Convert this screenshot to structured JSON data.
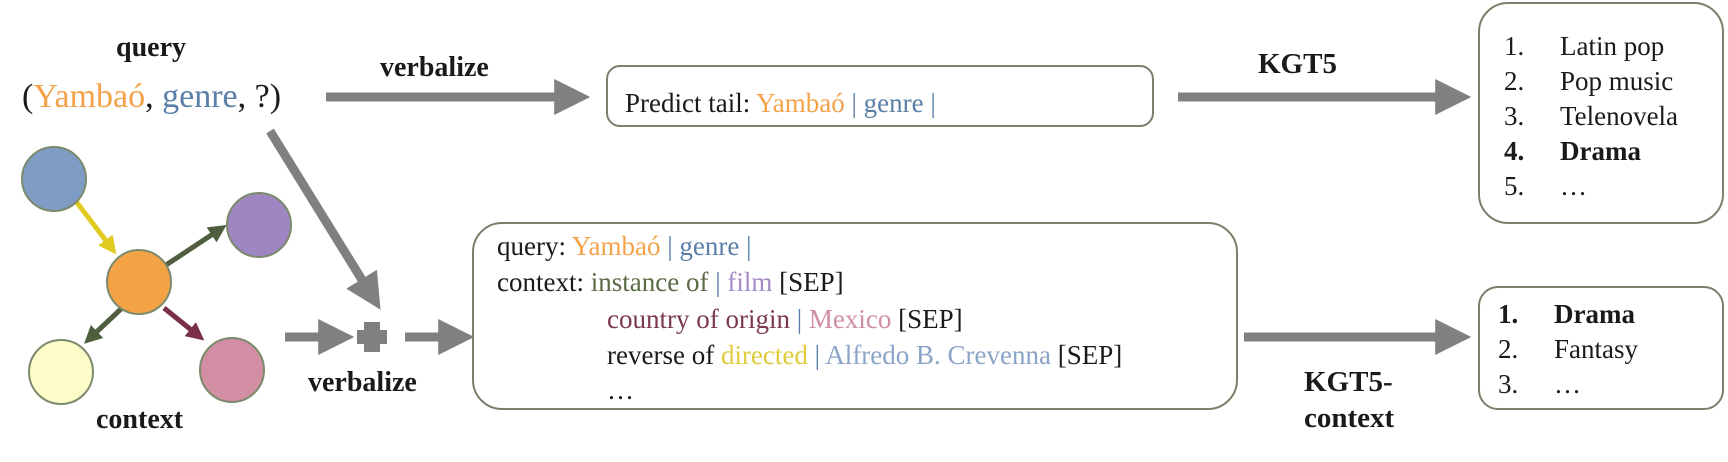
{
  "labels": {
    "query": "query",
    "context": "context",
    "verbalize_top": "verbalize",
    "verbalize_bottom": "verbalize",
    "kgt5": "KGT5",
    "kgt5_context_1": "KGT5-",
    "kgt5_context_2": "context"
  },
  "query_tuple": {
    "open": "(",
    "head": "Yambaó",
    "sep1": ", ",
    "relation": "genre",
    "sep2": ", ",
    "tail": "?",
    "close": ")"
  },
  "top_input": {
    "prefix": "Predict tail: ",
    "head": "Yambaó",
    "sep1": " | ",
    "relation": "genre",
    "sep2": " |"
  },
  "context_input": {
    "query_prefix": "query: ",
    "query_head": "Yambaó",
    "query_sep1": " | ",
    "query_relation": "genre",
    "query_sep2": " |",
    "context_prefix": "context: ",
    "lines": [
      {
        "relation": "instance of",
        "sep": " | ",
        "entity": "film",
        "end": " [SEP]"
      },
      {
        "relation": "country of origin",
        "sep": " | ",
        "entity": "Mexico",
        "end": " [SEP]"
      },
      {
        "relation_a": "reverse of ",
        "relation_b": "directed",
        "sep": " | ",
        "entity": "Alfredo B. Crevenna",
        "end": " [SEP]"
      }
    ],
    "ellipsis": "…"
  },
  "top_results": [
    {
      "num": "1.",
      "label": "Latin pop"
    },
    {
      "num": "2.",
      "label": "Pop music"
    },
    {
      "num": "3.",
      "label": "Telenovela"
    },
    {
      "num": "4.",
      "label": "Drama"
    },
    {
      "num": "5.",
      "label": "…"
    }
  ],
  "context_results": [
    {
      "num": "1.",
      "label": "Drama"
    },
    {
      "num": "2.",
      "label": "Fantasy"
    },
    {
      "num": "3.",
      "label": "…"
    }
  ],
  "colors": {
    "head": "#f4a24a",
    "relation": "#5a7fa8",
    "film": "#a48bc8",
    "mexico": "#d08ea4",
    "country_rel": "#7b3a4c",
    "instance_rel": "#5a6b45",
    "directed": "#e0cc3a",
    "crevenna": "#8aa4c8",
    "arrow": "#808080",
    "box_border": "#7d7f6c"
  },
  "graph_nodes": [
    {
      "name": "blue-node",
      "color": "#7f9cc4"
    },
    {
      "name": "purple-node",
      "color": "#9e86c2"
    },
    {
      "name": "orange-node",
      "color": "#f3a246"
    },
    {
      "name": "cream-node",
      "color": "#fcfcc8"
    },
    {
      "name": "pink-node",
      "color": "#d28ea2"
    }
  ]
}
